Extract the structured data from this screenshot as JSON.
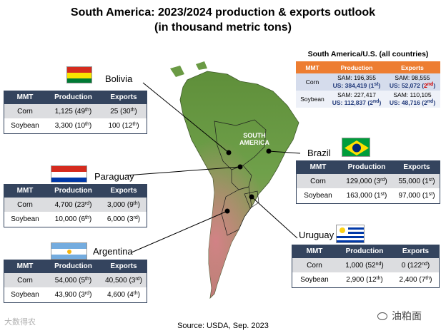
{
  "title": {
    "line1": "South America: 2023/2024 production & exports outlook",
    "line2": "(in thousand metric tons)"
  },
  "map": {
    "label_line1": "SOUTH",
    "label_line2": "AMERICA"
  },
  "columns": {
    "mmt": "MMT",
    "production": "Production",
    "exports": "Exports"
  },
  "countries": {
    "bolivia": {
      "name": "Bolivia",
      "rows": [
        {
          "label": "Corn",
          "prod": "1,125",
          "prod_rank": "49",
          "prod_sfx": "th",
          "exp": "25",
          "exp_rank": "30",
          "exp_sfx": "th"
        },
        {
          "label": "Soybean",
          "prod": "3,300",
          "prod_rank": "10",
          "prod_sfx": "th",
          "exp": "100",
          "exp_rank": "12",
          "exp_sfx": "th"
        }
      ]
    },
    "paraguay": {
      "name": "Paraguay",
      "rows": [
        {
          "label": "Corn",
          "prod": "4,700",
          "prod_rank": "23",
          "prod_sfx": "rd",
          "exp": "3,000",
          "exp_rank": "9",
          "exp_sfx": "th"
        },
        {
          "label": "Soybean",
          "prod": "10,000",
          "prod_rank": "6",
          "prod_sfx": "th",
          "exp": "6,000",
          "exp_rank": "3",
          "exp_sfx": "rd"
        }
      ]
    },
    "argentina": {
      "name": "Argentina",
      "rows": [
        {
          "label": "Corn",
          "prod": "54,000",
          "prod_rank": "5",
          "prod_sfx": "th",
          "exp": "40,500",
          "exp_rank": "3",
          "exp_sfx": "rd"
        },
        {
          "label": "Soybean",
          "prod": "43,900",
          "prod_rank": "3",
          "prod_sfx": "rd",
          "exp": "4,600",
          "exp_rank": "4",
          "exp_sfx": "th"
        }
      ]
    },
    "brazil": {
      "name": "Brazil",
      "rows": [
        {
          "label": "Corn",
          "prod": "129,000",
          "prod_rank": "3",
          "prod_sfx": "rd",
          "exp": "55,000",
          "exp_rank": "1",
          "exp_sfx": "st"
        },
        {
          "label": "Soybean",
          "prod": "163,000",
          "prod_rank": "1",
          "prod_sfx": "st",
          "exp": "97,000",
          "exp_rank": "1",
          "exp_sfx": "st"
        }
      ]
    },
    "uruguay": {
      "name": "Uruguay",
      "rows": [
        {
          "label": "Corn",
          "prod": "1,000",
          "prod_rank": "52",
          "prod_sfx": "nd",
          "exp": "0",
          "exp_rank": "122",
          "exp_sfx": "nd"
        },
        {
          "label": "Soybean",
          "prod": "2,900",
          "prod_rank": "12",
          "prod_sfx": "th",
          "exp": "2,400",
          "exp_rank": "7",
          "exp_sfx": "th"
        }
      ]
    }
  },
  "sa_us": {
    "title": "South America/U.S. (all countries)",
    "rows": [
      {
        "label": "Corn",
        "sam_prod": "SAM: 196,355",
        "us_prod": "US: 384,419",
        "us_prod_rank": "1",
        "us_prod_sfx": "st",
        "sam_exp": "SAM: 98,555",
        "us_exp": "US: 52,072",
        "us_exp_rank": "2",
        "us_exp_sfx": "nd"
      },
      {
        "label": "Soybean",
        "sam_prod": "SAM: 227,417",
        "us_prod": "US: 112,837",
        "us_prod_rank": "2",
        "us_prod_sfx": "nd",
        "sam_exp": "SAM: 110,105",
        "us_exp": "US: 48,716",
        "us_exp_rank": "2",
        "us_exp_sfx": "nd"
      }
    ]
  },
  "source": "Source: USDA, Sep. 2023",
  "watermark_left": "大数得农",
  "watermark_right": "油粕面",
  "colors": {
    "header": "#34445e",
    "sa_header": "#ed7d31",
    "us_text": "#223a7a",
    "highlight": "#d00000"
  }
}
